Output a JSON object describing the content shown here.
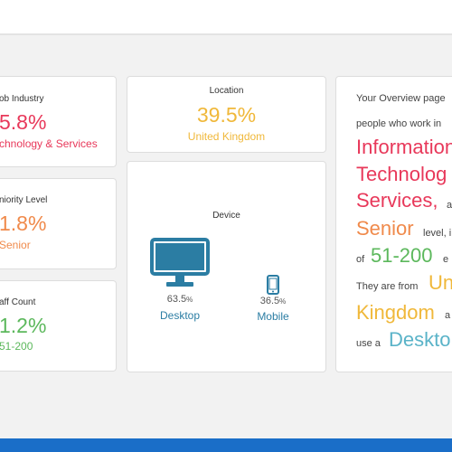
{
  "colors": {
    "industry": "#e8385a",
    "seniority": "#f08a4b",
    "staff": "#5cb85c",
    "location": "#f0b83a",
    "device": "#2b7da3"
  },
  "cards": {
    "industry": {
      "title": "ob Industry",
      "value": "5.8%",
      "sub": "chnology & Services"
    },
    "seniority": {
      "title": "niority Level",
      "value": "1.8%",
      "sub": "Senior"
    },
    "staff": {
      "title": "aff Count",
      "value": "1.2%",
      "sub": "51-200"
    }
  },
  "location": {
    "title": "Location",
    "value": "39.5%",
    "sub": "United Kingdom"
  },
  "device": {
    "title": "Device",
    "desktop": {
      "icon": "desktop-monitor-icon",
      "pct": "63.5",
      "pct_unit": "%",
      "label": "Desktop"
    },
    "mobile": {
      "icon": "mobile-phone-icon",
      "pct": "36.5",
      "pct_unit": "%",
      "label": "Mobile"
    }
  },
  "overview": {
    "line1": "Your Overview page",
    "line2": "people who work in",
    "industry1": "Information",
    "industry2": "Technolog",
    "industry3": "Services,",
    "industry3_suffix": "a",
    "seniority": "Senior",
    "seniority_suffix": "level, i",
    "of": "of",
    "staff": "51-200",
    "staff_suffix": "e",
    "from": "They are from",
    "loc1": "Un",
    "loc2": "Kingdom",
    "loc2_suffix": "a",
    "use_a": "use a",
    "device": "Deskto"
  }
}
